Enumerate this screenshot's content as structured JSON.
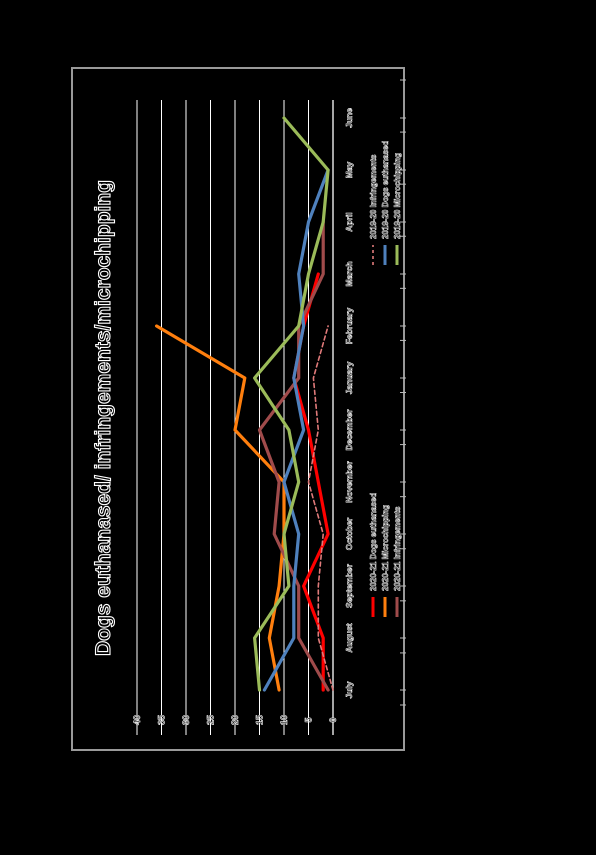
{
  "chart_data": {
    "type": "line",
    "title": "Dogs euthanased/ infringements/microchipping",
    "categories": [
      "July",
      "August",
      "September",
      "October",
      "November",
      "December",
      "January",
      "February",
      "March",
      "April",
      "May",
      "June"
    ],
    "ylim": [
      0,
      40
    ],
    "yticks": [
      0,
      5,
      10,
      15,
      20,
      25,
      30,
      35,
      40
    ],
    "grid": true,
    "legend_position": "bottom",
    "series": [
      {
        "name": "2020-21 Dogs euthanased",
        "color": "#ff0000",
        "style": "solid",
        "values": [
          2,
          2,
          6,
          1,
          3,
          5,
          8,
          6,
          3,
          null,
          null,
          null
        ]
      },
      {
        "name": "2020-21 Microchipping",
        "color": "#ff7f0e",
        "style": "solid",
        "values": [
          11,
          13,
          11,
          10,
          10,
          20,
          18,
          36,
          null,
          null,
          null,
          null
        ]
      },
      {
        "name": "2020-21 Infringements",
        "color": "#a04b4b",
        "style": "solid",
        "values": [
          1,
          7,
          7,
          12,
          11,
          15,
          7,
          7,
          2,
          2,
          null,
          0
        ]
      },
      {
        "name": "2019-20 Infringements",
        "color": "#e07a7a",
        "style": "dashed",
        "values": [
          0,
          3,
          3,
          2,
          5,
          3,
          4,
          1,
          null,
          null,
          null,
          null
        ]
      },
      {
        "name": "2019-20 Dogs euthanased",
        "color": "#4f81bd",
        "style": "solid",
        "values": [
          14,
          8,
          8,
          7,
          10,
          6,
          8,
          6,
          7,
          5,
          1,
          null
        ]
      },
      {
        "name": "2019-20 Microchipping",
        "color": "#9bbb59",
        "style": "solid",
        "values": [
          15,
          16,
          9,
          10,
          7,
          9,
          16,
          7,
          5,
          2,
          1,
          10
        ]
      }
    ]
  }
}
